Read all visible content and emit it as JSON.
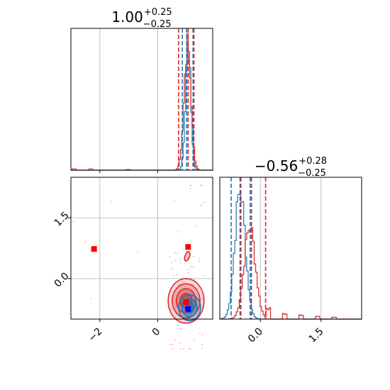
{
  "chart_data": {
    "type": "corner",
    "parameters": [
      {
        "title_value": "1.00",
        "title_upper": "+0.25",
        "title_lower": "−0.25"
      },
      {
        "title_value": "−0.56",
        "title_upper": "+0.28",
        "title_lower": "−0.25"
      }
    ],
    "colors": {
      "series_a": "#d62728",
      "series_b": "#1f77b4",
      "marker_b": "#0000ff",
      "scatter_points": "#f4a6b8"
    },
    "grid": true,
    "x1_range": [
      -3.0,
      1.9
    ],
    "y2_range": [
      -1.0,
      2.5
    ],
    "x1_ticks": [
      {
        "value": -2,
        "label": "−2"
      },
      {
        "value": 0,
        "label": "0"
      }
    ],
    "y2_ticks": [
      {
        "value": 1.5,
        "label": "1.5"
      },
      {
        "value": 0.0,
        "label": "0.0"
      }
    ],
    "x2_ticks": [
      {
        "value": 0.0,
        "label": "0.0"
      },
      {
        "value": 1.5,
        "label": "1.5"
      }
    ],
    "hist1": {
      "series_a": {
        "quantile_lines": [
          0.72,
          1.05,
          1.25
        ],
        "peaks": [
          {
            "center": 1.03,
            "sigma": 0.12,
            "height": 0.98
          }
        ],
        "tail": [
          [
            -2.9,
            0.01
          ],
          [
            -2.3,
            0.01
          ],
          [
            -1.0,
            0.005
          ]
        ]
      },
      "series_b": {
        "quantile_lines": [
          0.85,
          1.0,
          1.22
        ],
        "peaks": [
          {
            "center": 1.05,
            "sigma": 0.09,
            "height": 1.0
          }
        ]
      }
    },
    "hist2": {
      "series_a": {
        "quantile_lines": [
          -0.5,
          -0.22,
          0.13
        ],
        "peaks": [
          {
            "center": -0.26,
            "sigma": 0.14,
            "height": 0.72
          }
        ],
        "tail": [
          [
            0.2,
            0.08
          ],
          [
            0.6,
            0.04
          ],
          [
            1.0,
            0.03
          ],
          [
            1.4,
            0.02
          ],
          [
            1.8,
            0.015
          ]
        ]
      },
      "series_b": {
        "quantile_lines": [
          -0.72,
          -0.48,
          -0.25
        ],
        "peaks": [
          {
            "center": -0.5,
            "sigma": 0.13,
            "height": 1.0
          }
        ]
      }
    },
    "markers": {
      "series_a": [
        {
          "x": -2.2,
          "y": 0.73
        },
        {
          "x": 1.05,
          "y": 0.78
        },
        {
          "x": 0.98,
          "y": -0.58
        }
      ],
      "series_b": [
        {
          "x": 1.05,
          "y": -0.75
        }
      ]
    },
    "contours": {
      "series_a": {
        "center": [
          0.98,
          -0.55
        ],
        "radii": [
          [
            0.62,
            0.55
          ],
          [
            0.48,
            0.42
          ],
          [
            0.34,
            0.3
          ],
          [
            0.2,
            0.18
          ]
        ]
      },
      "series_a_blob": {
        "center": [
          1.02,
          0.55
        ],
        "radii": [
          [
            0.08,
            0.12
          ]
        ]
      },
      "series_b": {
        "center": [
          1.1,
          -0.72
        ],
        "radii": [
          [
            0.38,
            0.32
          ],
          [
            0.26,
            0.22
          ],
          [
            0.14,
            0.13
          ]
        ]
      }
    }
  }
}
